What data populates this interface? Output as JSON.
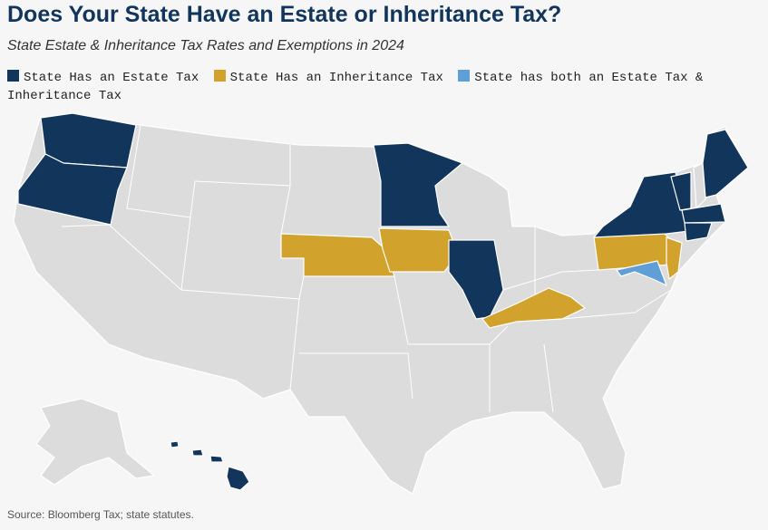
{
  "header": {
    "title": "Does Your State Have an Estate or Inheritance Tax?",
    "subtitle": "State Estate & Inheritance Tax Rates and Exemptions in 2024"
  },
  "legend": [
    {
      "name": "State Has an Estate Tax",
      "color": "#12355b"
    },
    {
      "name": "State Has an Inheritance Tax",
      "color": "#d2a32c"
    },
    {
      "name": "State has both an Estate Tax & Inheritance Tax",
      "color": "#5f9ed6"
    }
  ],
  "base_color": "#dcdcdc",
  "footer": {
    "source": "Source: Bloomberg Tax; state statutes."
  }
}
